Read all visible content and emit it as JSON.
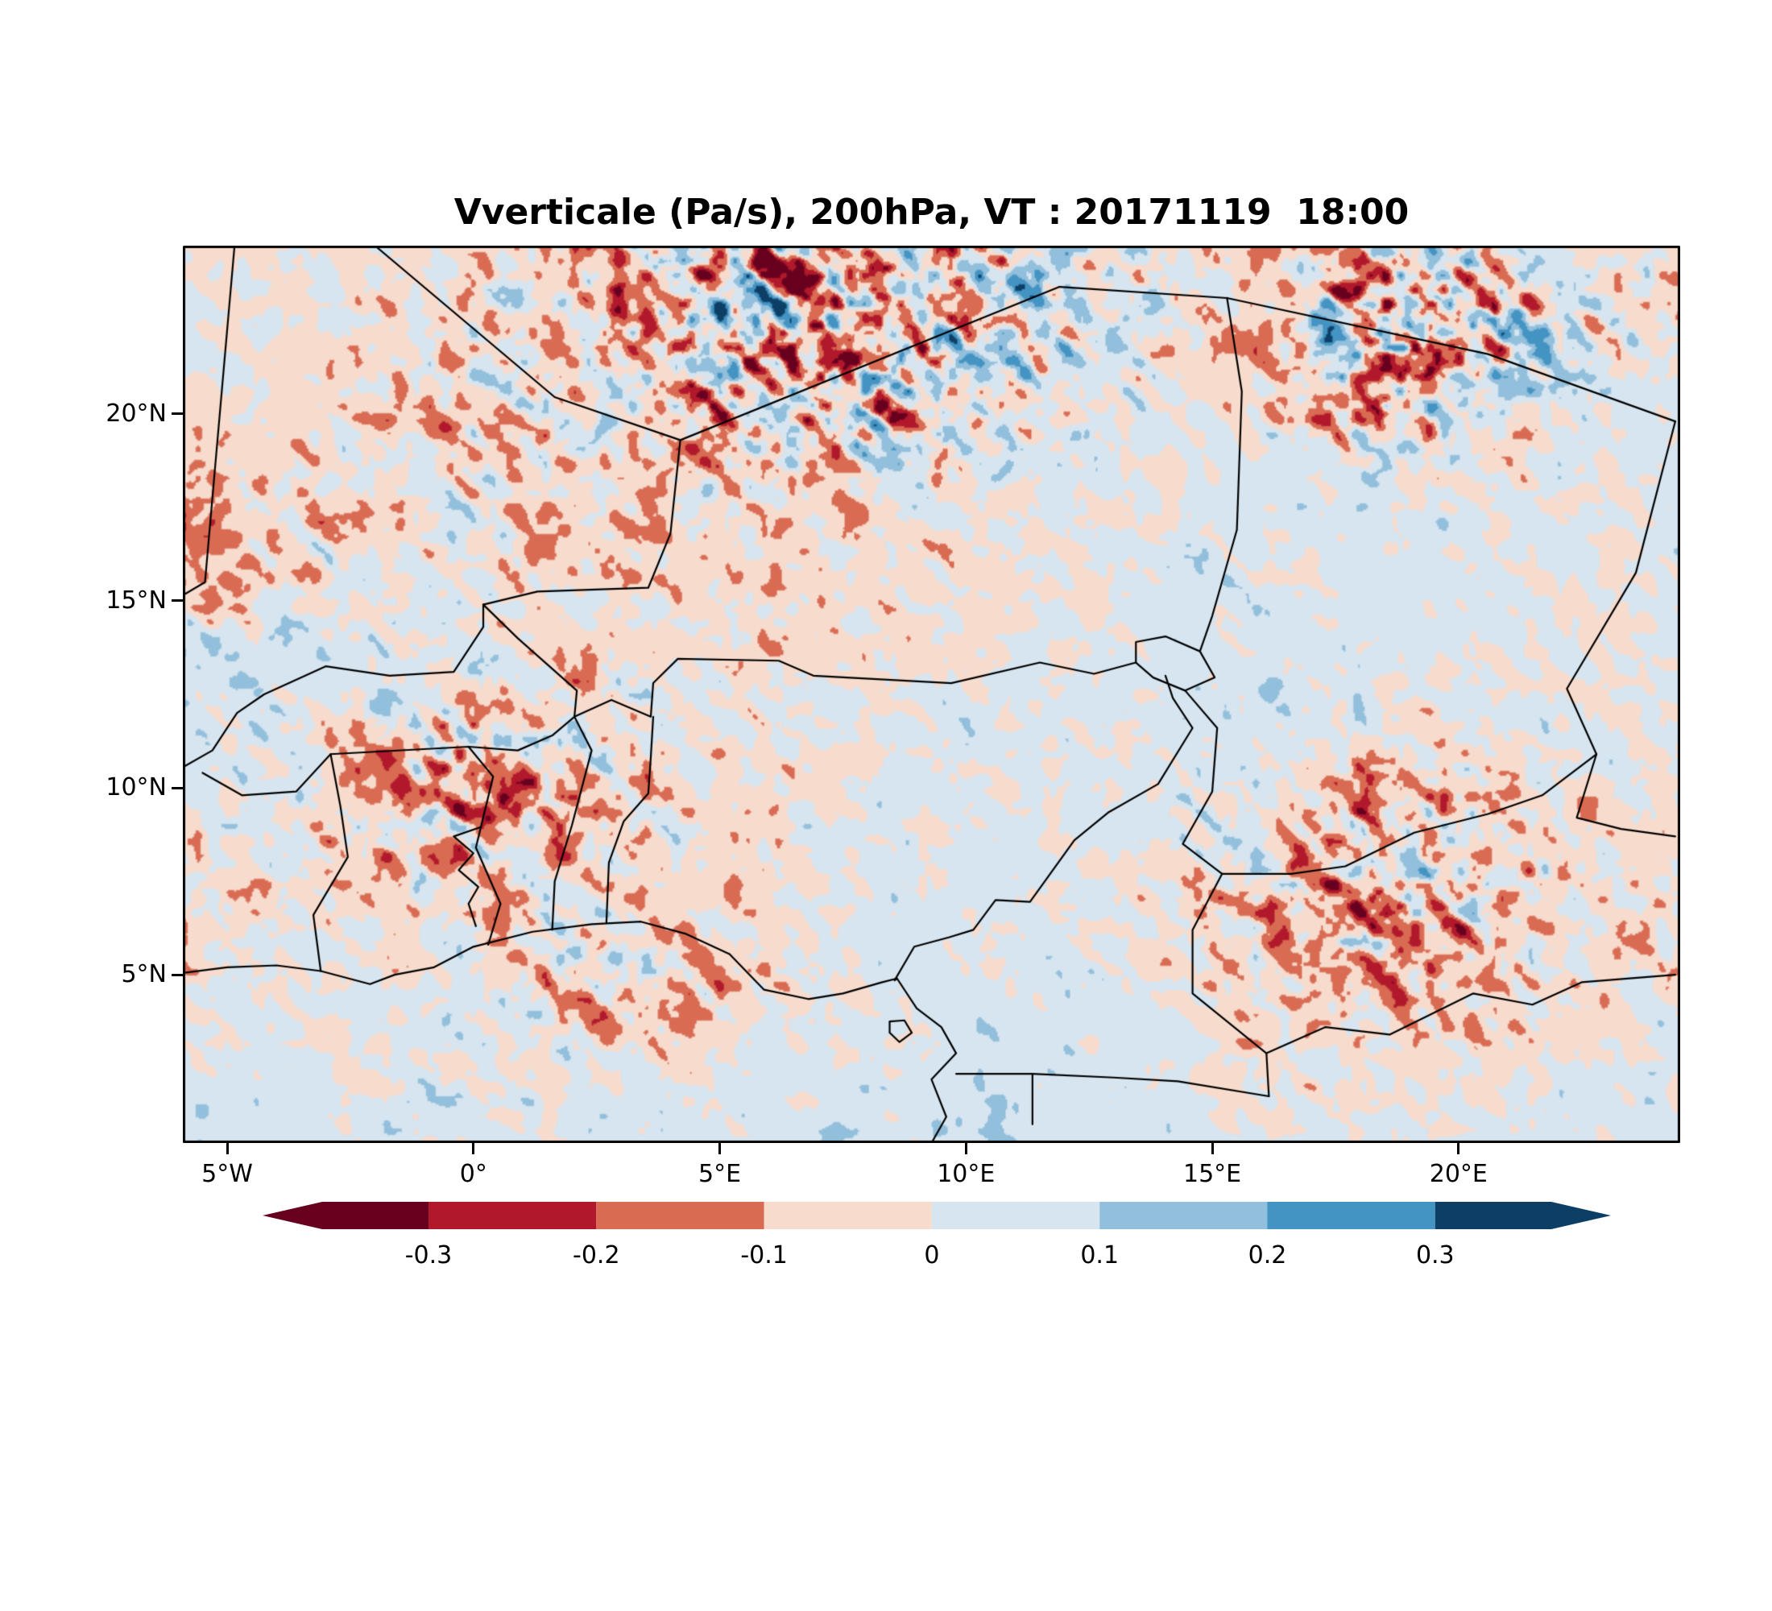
{
  "figure": {
    "title": "Vverticale (Pa/s), 200hPa, VT : 20171119  18:00"
  },
  "axes": {
    "lat_ticks": [
      {
        "value": 20,
        "label": "20°N"
      },
      {
        "value": 15,
        "label": "15°N"
      },
      {
        "value": 10,
        "label": "10°N"
      },
      {
        "value": 5,
        "label": "5°N"
      }
    ],
    "lon_ticks": [
      {
        "value": -5,
        "label": "5°W"
      },
      {
        "value": 0,
        "label": "0°"
      },
      {
        "value": 5,
        "label": "5°E"
      },
      {
        "value": 10,
        "label": "10°E"
      },
      {
        "value": 15,
        "label": "15°E"
      },
      {
        "value": 20,
        "label": "20°E"
      }
    ]
  },
  "colorbar": {
    "labels": [
      "-0.3",
      "-0.2",
      "-0.1",
      "0",
      "0.1",
      "0.2",
      "0.3"
    ],
    "colors": [
      "#67001f",
      "#b2182b",
      "#d96b53",
      "#f7dcce",
      "#d6e5f0",
      "#92bfdb",
      "#4393c3",
      "#0d3f66"
    ],
    "extend": "both"
  },
  "chart_data": {
    "type": "heatmap",
    "title": "Vverticale (Pa/s), 200hPa, VT : 20171119  18:00",
    "variable": "Vverticale",
    "units": "Pa/s",
    "level": "200hPa",
    "valid_time": "20171119 18:00",
    "lon_range": [
      -5.9,
      24.5
    ],
    "lat_range": [
      0.5,
      24.5
    ],
    "lon_ticks": [
      -5,
      0,
      5,
      10,
      15,
      20
    ],
    "lon_tick_labels": [
      "5°W",
      "0°",
      "5°E",
      "10°E",
      "15°E",
      "20°E"
    ],
    "lat_ticks": [
      5,
      10,
      15,
      20
    ],
    "lat_tick_labels": [
      "5°N",
      "10°N",
      "15°N",
      "20°N"
    ],
    "levels": [
      -0.3,
      -0.2,
      -0.1,
      0,
      0.1,
      0.2,
      0.3
    ],
    "colors": [
      "#67001f",
      "#b2182b",
      "#d96b53",
      "#f7dcce",
      "#d6e5f0",
      "#92bfdb",
      "#4393c3",
      "#0d3f66"
    ],
    "grid": {
      "description": "Coarse regional field read from the plot, units 0.01 Pa/s. base = regional mean vertical velocity (negative=red/ascent shading, positive=blue). noise_amp = amplitude of small-scale turbulent speckle seen in the plot. Rows run north (24.5N) to south (0.5N), columns west (-5.9E) to east (24.5E).",
      "cols": 16,
      "rows": 12,
      "base": [
        [
          -4,
          -3,
          -2,
          -2,
          -3,
          -5,
          -6,
          -3,
          5,
          6,
          2,
          -2,
          -4,
          -2,
          2,
          -3
        ],
        [
          3,
          -2,
          -3,
          -3,
          -4,
          -6,
          -8,
          -4,
          4,
          5,
          1,
          -4,
          -6,
          -4,
          3,
          -4
        ],
        [
          -3,
          -3,
          -4,
          -4,
          -3,
          -4,
          -6,
          -4,
          0,
          3,
          2,
          -2,
          -6,
          -3,
          3,
          4
        ],
        [
          -8,
          -6,
          -6,
          -4,
          -4,
          -4,
          -3,
          -3,
          -2,
          0,
          2,
          2,
          0,
          -2,
          3,
          5
        ],
        [
          -12,
          -8,
          -6,
          -5,
          -4,
          -4,
          -4,
          -3,
          -3,
          -2,
          2,
          3,
          2,
          2,
          3,
          4
        ],
        [
          2,
          3,
          2,
          0,
          -2,
          -3,
          -4,
          -4,
          -3,
          -2,
          2,
          3,
          3,
          2,
          2,
          3
        ],
        [
          3,
          3,
          -6,
          -8,
          -8,
          2,
          2,
          0,
          2,
          3,
          3,
          2,
          2,
          2,
          3,
          2
        ],
        [
          2,
          -2,
          -8,
          -10,
          -8,
          -3,
          -2,
          -2,
          2,
          3,
          2,
          -6,
          -8,
          -6,
          -3,
          -2
        ],
        [
          -5,
          -3,
          -5,
          -6,
          -3,
          -3,
          -2,
          2,
          3,
          2,
          -2,
          -8,
          -10,
          -8,
          -4,
          -5
        ],
        [
          -2,
          2,
          2,
          -2,
          -8,
          -6,
          -3,
          -2,
          2,
          6,
          2,
          -6,
          -8,
          -6,
          -2,
          -4
        ],
        [
          2,
          3,
          2,
          2,
          -2,
          -3,
          2,
          4,
          6,
          6,
          3,
          -2,
          -3,
          -2,
          2,
          3
        ],
        [
          2,
          3,
          3,
          2,
          2,
          2,
          6,
          9,
          9,
          7,
          4,
          3,
          2,
          3,
          4,
          4
        ]
      ],
      "noise_amp": [
        [
          3,
          4,
          5,
          7,
          10,
          18,
          24,
          20,
          20,
          16,
          7,
          8,
          16,
          12,
          7,
          8
        ],
        [
          4,
          5,
          7,
          10,
          12,
          20,
          28,
          22,
          18,
          12,
          7,
          10,
          30,
          26,
          9,
          8
        ],
        [
          3,
          4,
          7,
          11,
          10,
          14,
          20,
          24,
          12,
          7,
          5,
          7,
          22,
          12,
          6,
          5
        ],
        [
          9,
          8,
          7,
          8,
          8,
          8,
          8,
          8,
          6,
          5,
          4,
          4,
          6,
          5,
          4,
          4
        ],
        [
          10,
          9,
          8,
          8,
          6,
          6,
          6,
          6,
          5,
          4,
          4,
          4,
          4,
          4,
          4,
          4
        ],
        [
          4,
          5,
          6,
          6,
          6,
          6,
          6,
          5,
          5,
          4,
          4,
          4,
          4,
          4,
          4,
          4
        ],
        [
          5,
          6,
          10,
          14,
          14,
          6,
          6,
          6,
          5,
          4,
          4,
          5,
          8,
          6,
          5,
          4
        ],
        [
          6,
          6,
          12,
          16,
          12,
          8,
          6,
          5,
          4,
          4,
          6,
          10,
          14,
          12,
          6,
          5
        ],
        [
          8,
          6,
          8,
          10,
          8,
          6,
          5,
          4,
          4,
          4,
          6,
          14,
          18,
          14,
          8,
          6
        ],
        [
          6,
          5,
          6,
          8,
          12,
          10,
          6,
          4,
          4,
          4,
          5,
          10,
          14,
          10,
          6,
          7
        ],
        [
          4,
          4,
          5,
          6,
          6,
          5,
          4,
          4,
          4,
          4,
          4,
          5,
          8,
          6,
          5,
          5
        ],
        [
          3,
          4,
          4,
          4,
          4,
          4,
          4,
          4,
          4,
          3,
          3,
          4,
          4,
          4,
          4,
          3
        ]
      ]
    },
    "borders": {
      "coastline_gulf_of_guinea": [
        [
          -5.9,
          5.05
        ],
        [
          -5.0,
          5.2
        ],
        [
          -4.0,
          5.25
        ],
        [
          -3.1,
          5.1
        ],
        [
          -2.1,
          4.75
        ],
        [
          -1.6,
          5.0
        ],
        [
          -0.8,
          5.2
        ],
        [
          0.0,
          5.75
        ],
        [
          1.2,
          6.15
        ],
        [
          2.4,
          6.35
        ],
        [
          3.4,
          6.42
        ],
        [
          4.3,
          6.1
        ],
        [
          5.2,
          5.55
        ],
        [
          5.9,
          4.6
        ],
        [
          6.8,
          4.35
        ],
        [
          7.5,
          4.5
        ],
        [
          8.3,
          4.8
        ],
        [
          8.6,
          4.9
        ],
        [
          9.0,
          4.1
        ],
        [
          9.5,
          3.6
        ],
        [
          9.8,
          2.9
        ],
        [
          9.3,
          2.2
        ],
        [
          9.6,
          1.2
        ],
        [
          9.3,
          0.5
        ]
      ],
      "bioko_island": [
        [
          8.45,
          3.75
        ],
        [
          8.75,
          3.78
        ],
        [
          8.9,
          3.45
        ],
        [
          8.65,
          3.2
        ],
        [
          8.45,
          3.45
        ],
        [
          8.45,
          3.75
        ]
      ],
      "lake_volta": [
        [
          0.05,
          6.3
        ],
        [
          -0.1,
          6.9
        ],
        [
          0.1,
          7.35
        ],
        [
          -0.3,
          7.8
        ],
        [
          0.0,
          8.25
        ],
        [
          -0.4,
          8.7
        ],
        [
          0.15,
          8.95
        ]
      ],
      "mauritania_mali": [
        [
          -5.9,
          15.15
        ],
        [
          -5.45,
          15.5
        ],
        [
          -4.85,
          24.5
        ]
      ],
      "algeria_mali": [
        [
          -2.0,
          24.5
        ],
        [
          1.65,
          20.45
        ],
        [
          4.2,
          19.3
        ]
      ],
      "algeria_niger": [
        [
          4.2,
          19.3
        ],
        [
          11.9,
          23.4
        ]
      ],
      "niger_libya": [
        [
          11.9,
          23.4
        ],
        [
          15.3,
          23.1
        ]
      ],
      "libya_chad": [
        [
          15.3,
          23.1
        ],
        [
          20.6,
          21.6
        ],
        [
          24.4,
          19.8
        ]
      ],
      "chad_sudan": [
        [
          24.4,
          19.8
        ],
        [
          23.6,
          15.75
        ],
        [
          22.2,
          12.65
        ],
        [
          22.8,
          10.9
        ],
        [
          22.4,
          9.2
        ],
        [
          23.3,
          8.9
        ],
        [
          24.4,
          8.7
        ]
      ],
      "mali_niger": [
        [
          4.2,
          19.3
        ],
        [
          4.0,
          16.8
        ],
        [
          3.55,
          15.35
        ],
        [
          1.3,
          15.25
        ],
        [
          0.2,
          14.9
        ]
      ],
      "mali_burkina": [
        [
          -5.9,
          10.55
        ],
        [
          -5.3,
          11.0
        ],
        [
          -4.8,
          12.0
        ],
        [
          -4.25,
          12.5
        ],
        [
          -3.0,
          13.25
        ],
        [
          -1.7,
          13.0
        ],
        [
          -0.4,
          13.1
        ],
        [
          0.2,
          14.3
        ],
        [
          0.2,
          14.9
        ]
      ],
      "burkina_niger_benin": [
        [
          0.2,
          14.9
        ],
        [
          0.9,
          14.0
        ],
        [
          2.1,
          12.6
        ],
        [
          2.05,
          11.9
        ]
      ],
      "niger_nigeria": [
        [
          2.05,
          11.9
        ],
        [
          2.8,
          12.35
        ],
        [
          3.6,
          11.9
        ],
        [
          3.65,
          12.8
        ],
        [
          4.15,
          13.45
        ],
        [
          6.2,
          13.4
        ],
        [
          6.9,
          13.0
        ],
        [
          9.7,
          12.8
        ],
        [
          11.5,
          13.35
        ],
        [
          12.6,
          13.05
        ],
        [
          13.45,
          13.35
        ]
      ],
      "lake_chad": [
        [
          13.45,
          13.9
        ],
        [
          14.05,
          14.05
        ],
        [
          14.75,
          13.65
        ],
        [
          15.05,
          12.95
        ],
        [
          14.45,
          12.6
        ],
        [
          13.8,
          12.95
        ],
        [
          13.45,
          13.35
        ],
        [
          13.45,
          13.9
        ]
      ],
      "niger_chad": [
        [
          15.3,
          23.1
        ],
        [
          15.6,
          20.6
        ],
        [
          15.5,
          16.9
        ],
        [
          15.0,
          14.6
        ],
        [
          14.75,
          13.65
        ]
      ],
      "burkina_south": [
        [
          -5.5,
          10.4
        ],
        [
          -4.7,
          9.8
        ],
        [
          -3.6,
          9.9
        ],
        [
          -2.9,
          10.9
        ],
        [
          -0.1,
          11.1
        ],
        [
          0.9,
          11.0
        ],
        [
          1.6,
          11.4
        ],
        [
          2.05,
          11.9
        ]
      ],
      "cote_divoire_ghana": [
        [
          -3.1,
          5.1
        ],
        [
          -3.25,
          6.6
        ],
        [
          -2.55,
          8.15
        ],
        [
          -2.7,
          9.5
        ],
        [
          -2.9,
          10.9
        ]
      ],
      "ghana_togo": [
        [
          0.3,
          5.8
        ],
        [
          0.55,
          6.9
        ],
        [
          0.05,
          8.4
        ],
        [
          0.4,
          10.3
        ],
        [
          -0.1,
          11.1
        ]
      ],
      "togo_benin": [
        [
          1.6,
          6.2
        ],
        [
          1.65,
          7.5
        ],
        [
          2.0,
          9.0
        ],
        [
          2.4,
          11.0
        ],
        [
          2.05,
          11.9
        ]
      ],
      "benin_nigeria": [
        [
          2.7,
          6.4
        ],
        [
          2.75,
          8.0
        ],
        [
          3.05,
          9.1
        ],
        [
          3.55,
          9.85
        ],
        [
          3.6,
          10.8
        ],
        [
          3.65,
          11.9
        ]
      ],
      "nigeria_cameroon": [
        [
          14.05,
          13.0
        ],
        [
          14.2,
          12.4
        ],
        [
          14.6,
          11.6
        ],
        [
          13.9,
          10.1
        ],
        [
          12.9,
          9.35
        ],
        [
          12.2,
          8.6
        ],
        [
          11.3,
          6.95
        ],
        [
          10.6,
          7.0
        ],
        [
          10.15,
          6.2
        ],
        [
          9.65,
          6.0
        ],
        [
          8.95,
          5.75
        ],
        [
          8.55,
          4.85
        ],
        [
          8.6,
          4.9
        ]
      ],
      "chad_cameroon": [
        [
          14.45,
          12.6
        ],
        [
          15.1,
          11.6
        ],
        [
          15.0,
          9.9
        ],
        [
          14.4,
          8.5
        ],
        [
          15.2,
          7.7
        ]
      ],
      "chad_car": [
        [
          15.2,
          7.7
        ],
        [
          16.6,
          7.7
        ],
        [
          17.7,
          7.9
        ],
        [
          19.1,
          8.8
        ],
        [
          20.6,
          9.3
        ],
        [
          21.7,
          9.8
        ],
        [
          22.8,
          10.9
        ]
      ],
      "cameroon_car": [
        [
          15.2,
          7.7
        ],
        [
          14.6,
          6.2
        ],
        [
          14.6,
          4.5
        ],
        [
          16.1,
          2.9
        ],
        [
          16.15,
          1.75
        ]
      ],
      "car_congo": [
        [
          16.1,
          2.9
        ],
        [
          17.3,
          3.6
        ],
        [
          18.6,
          3.4
        ],
        [
          20.3,
          4.5
        ],
        [
          21.5,
          4.2
        ],
        [
          22.5,
          4.8
        ],
        [
          24.4,
          5.0
        ]
      ],
      "cameroon_south": [
        [
          9.8,
          2.35
        ],
        [
          11.35,
          2.35
        ],
        [
          13.0,
          2.25
        ],
        [
          14.3,
          2.15
        ],
        [
          16.15,
          1.75
        ]
      ],
      "eq_guinea_gabon": [
        [
          11.35,
          2.35
        ],
        [
          11.35,
          1.0
        ]
      ]
    }
  }
}
